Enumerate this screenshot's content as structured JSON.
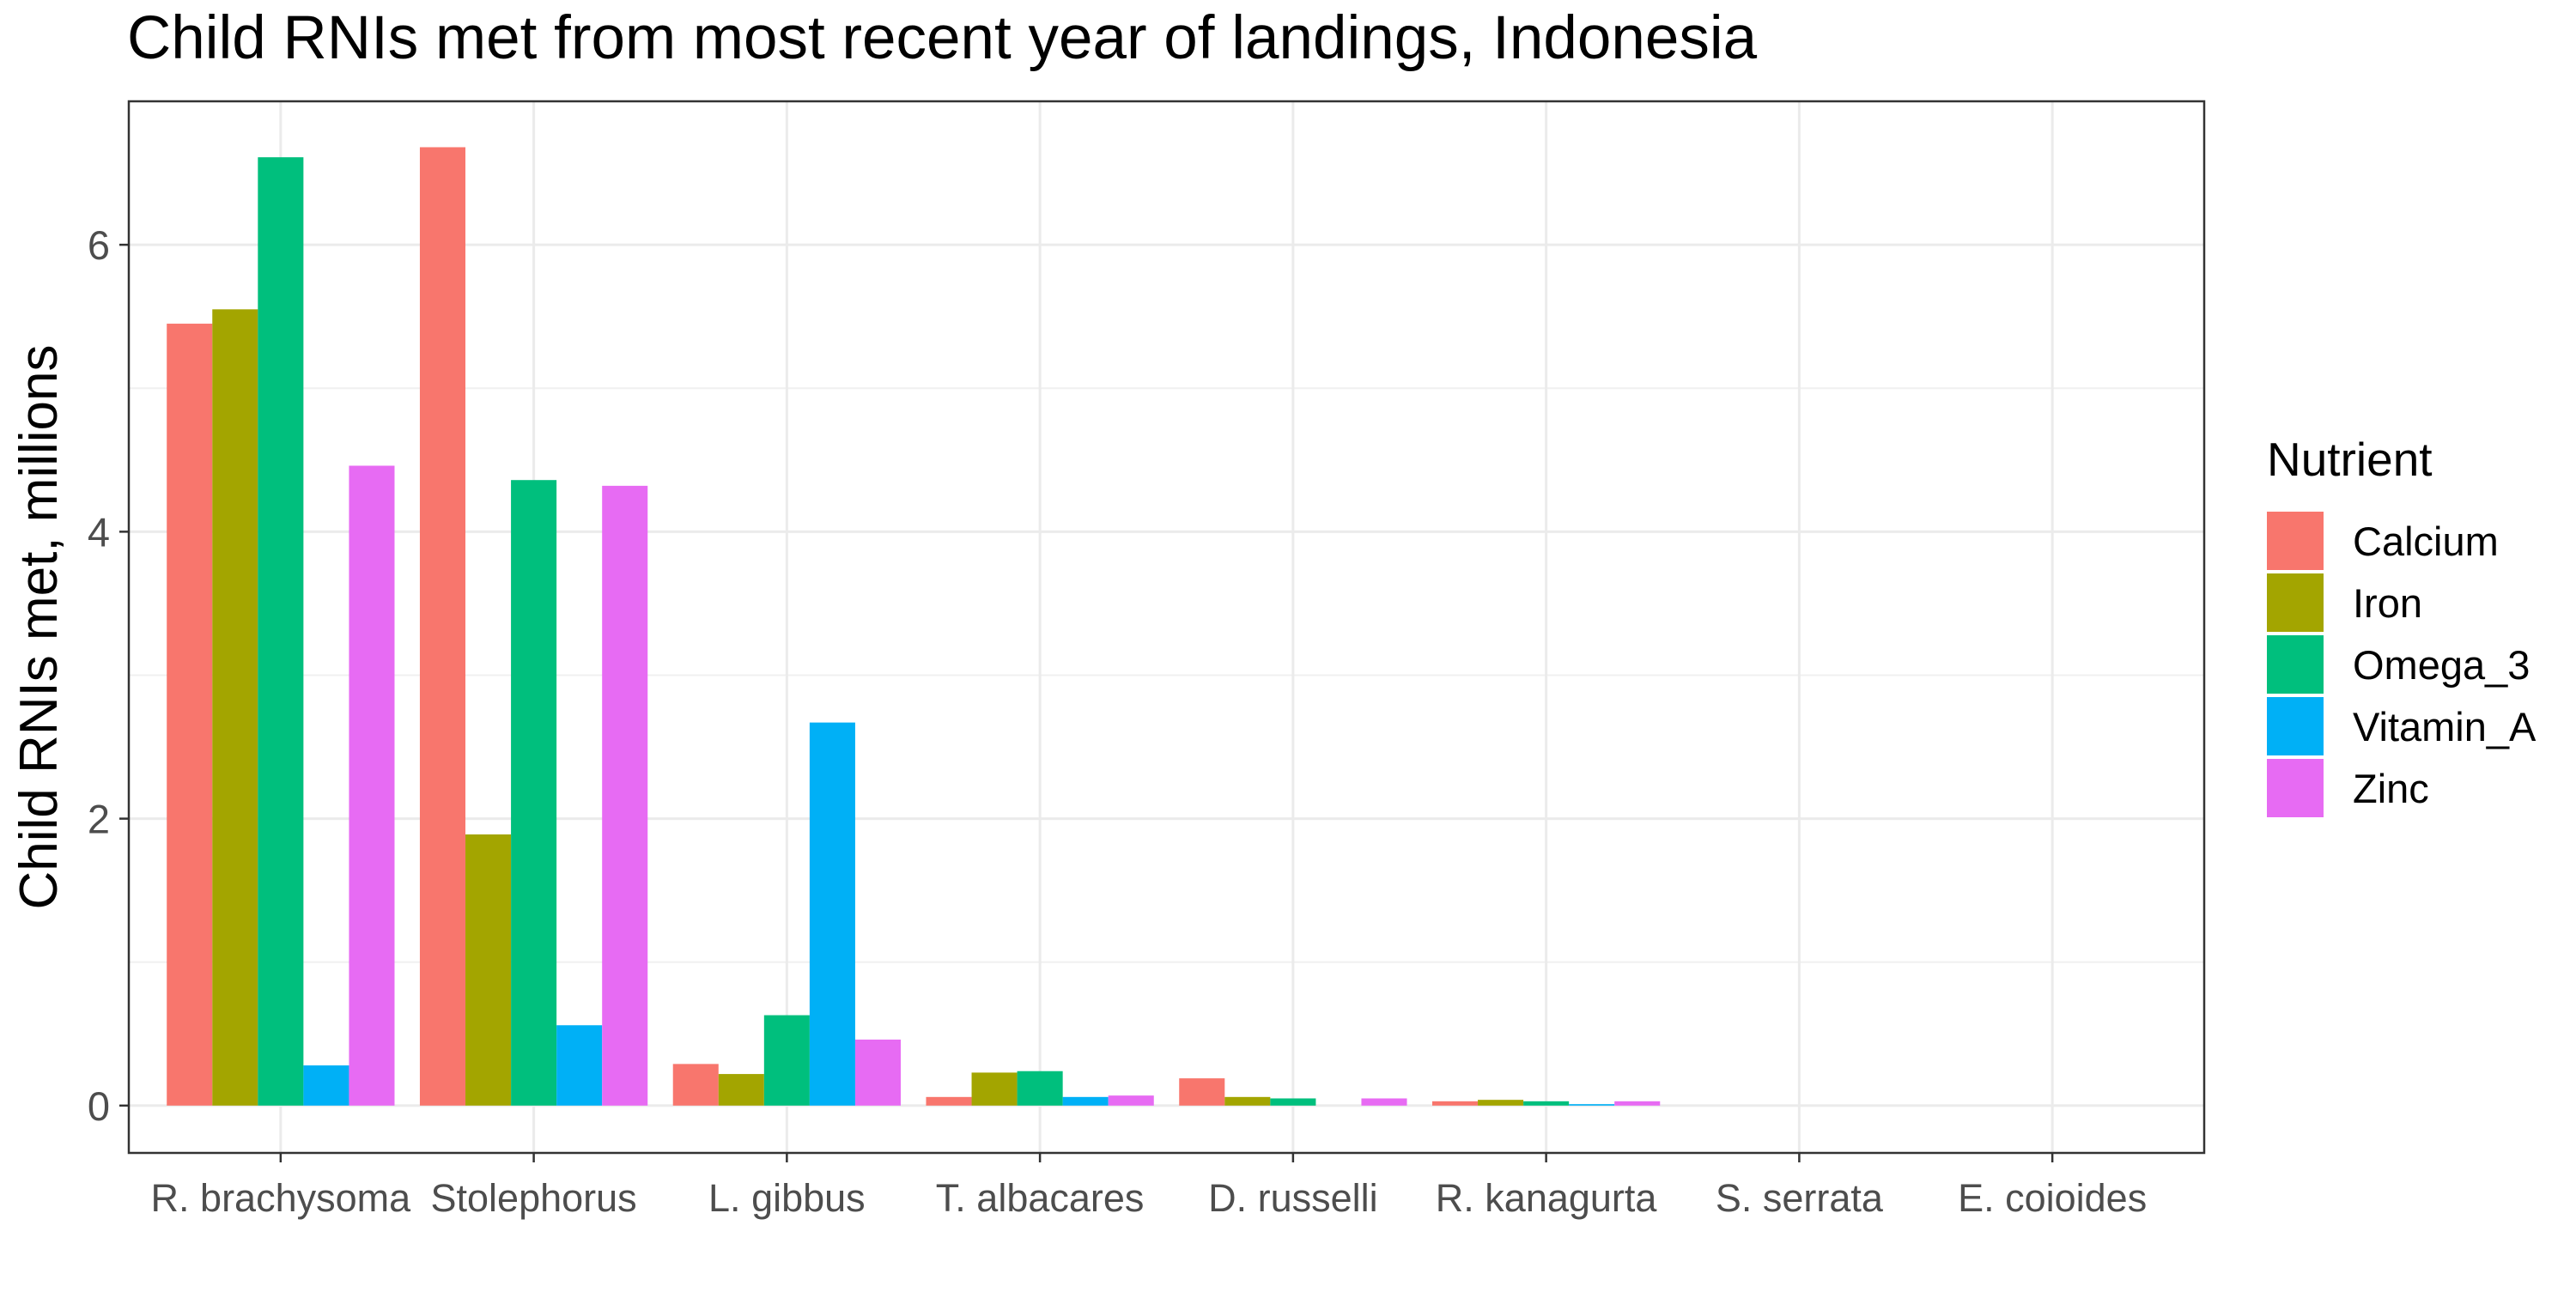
{
  "chart_data": {
    "type": "bar",
    "title": "Child RNIs met from most recent year of landings, Indonesia",
    "xlabel": "",
    "ylabel": "Child RNIs met, millions",
    "ylim": [
      -0.33,
      7.0
    ],
    "yticks": [
      0,
      2,
      4,
      6
    ],
    "grid": true,
    "legend_position": "right",
    "legend_title": "Nutrient",
    "categories": [
      "R. brachysoma",
      "Stolephorus",
      "L. gibbus",
      "T. albacares",
      "D. russelli",
      "R. kanagurta",
      "S. serrata",
      "E. coioides"
    ],
    "series": [
      {
        "name": "Calcium",
        "color": "#F8766D",
        "values": [
          5.45,
          6.68,
          0.29,
          0.06,
          0.19,
          0.03,
          0.0,
          0.0
        ]
      },
      {
        "name": "Iron",
        "color": "#A3A500",
        "values": [
          5.55,
          1.89,
          0.22,
          0.23,
          0.06,
          0.04,
          0.0,
          0.0
        ]
      },
      {
        "name": "Omega_3",
        "color": "#00BF7D",
        "values": [
          6.61,
          4.36,
          0.63,
          0.24,
          0.05,
          0.03,
          0.0,
          0.0
        ]
      },
      {
        "name": "Vitamin_A",
        "color": "#00B0F6",
        "values": [
          0.28,
          0.56,
          2.67,
          0.06,
          0.0,
          0.01,
          0.0,
          0.0
        ]
      },
      {
        "name": "Zinc",
        "color": "#E76BF3",
        "values": [
          4.46,
          4.32,
          0.46,
          0.07,
          0.05,
          0.03,
          0.0,
          0.0
        ]
      }
    ]
  }
}
